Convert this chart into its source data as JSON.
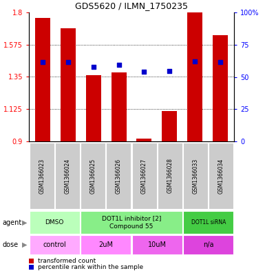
{
  "title": "GDS5620 / ILMN_1750235",
  "samples": [
    "GSM1366023",
    "GSM1366024",
    "GSM1366025",
    "GSM1366026",
    "GSM1366027",
    "GSM1366028",
    "GSM1366033",
    "GSM1366034"
  ],
  "bar_values": [
    1.76,
    1.69,
    1.36,
    1.38,
    0.92,
    1.11,
    1.8,
    1.64
  ],
  "dot_values": [
    1.455,
    1.455,
    1.42,
    1.435,
    1.385,
    1.39,
    1.46,
    1.455
  ],
  "ylim_left": [
    0.9,
    1.8
  ],
  "ylim_right": [
    0,
    100
  ],
  "yticks_left": [
    0.9,
    1.125,
    1.35,
    1.575,
    1.8
  ],
  "ytick_labels_left": [
    "0.9",
    "1.125",
    "1.35",
    "1.575",
    "1.8"
  ],
  "yticks_right": [
    0,
    25,
    50,
    75,
    100
  ],
  "ytick_labels_right": [
    "0",
    "25",
    "50",
    "75",
    "100%"
  ],
  "bar_color": "#cc0000",
  "dot_color": "#0000cc",
  "bar_width": 0.6,
  "agent_groups": [
    {
      "label": "DMSO",
      "cols": [
        0,
        1
      ]
    },
    {
      "label": "DOT1L inhibitor [2]\nCompound 55",
      "cols": [
        2,
        3,
        4,
        5
      ]
    },
    {
      "label": "DOT1L siRNA",
      "cols": [
        6,
        7
      ]
    }
  ],
  "agent_colors": [
    "#bbffbb",
    "#88ee88",
    "#44cc44"
  ],
  "dose_groups": [
    {
      "label": "control",
      "cols": [
        0,
        1
      ]
    },
    {
      "label": "2uM",
      "cols": [
        2,
        3
      ]
    },
    {
      "label": "10uM",
      "cols": [
        4,
        5
      ]
    },
    {
      "label": "n/a",
      "cols": [
        6,
        7
      ]
    }
  ],
  "dose_colors": [
    "#ffaaff",
    "#ff88ff",
    "#ee66ee",
    "#dd44dd"
  ],
  "legend_bar_label": "transformed count",
  "legend_dot_label": "percentile rank within the sample",
  "agent_label": "agent",
  "dose_label": "dose",
  "gsm_bg_color": "#cccccc",
  "grid_color": "black",
  "grid_lw": 0.6,
  "grid_ls": ":"
}
